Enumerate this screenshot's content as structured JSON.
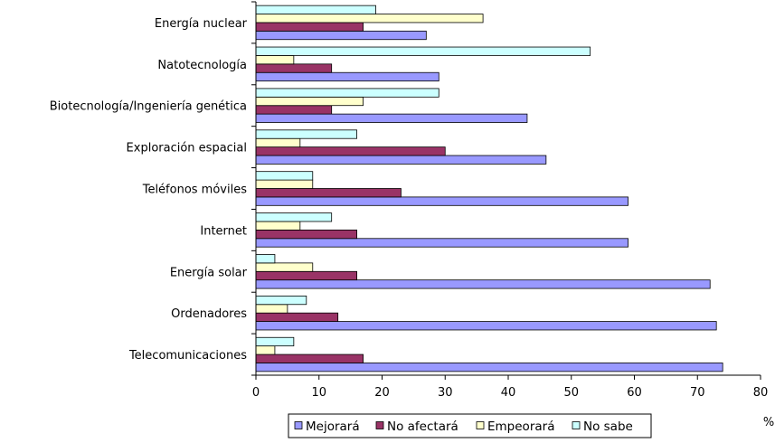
{
  "chart_data": {
    "type": "bar",
    "orientation": "horizontal",
    "categories": [
      "Energía nuclear",
      "Natotecnología",
      "Biotecnología/Ingeniería genética",
      "Exploración espacial",
      "Teléfonos móviles",
      "Internet",
      "Energía solar",
      "Ordenadores",
      "Telecomunicaciones"
    ],
    "series": [
      {
        "name": "Mejorará",
        "color": "#9999ff",
        "values": [
          27,
          29,
          43,
          46,
          59,
          59,
          72,
          73,
          74
        ]
      },
      {
        "name": "No afectará",
        "color": "#993366",
        "values": [
          17,
          12,
          12,
          30,
          23,
          16,
          16,
          13,
          17
        ]
      },
      {
        "name": "Empeorará",
        "color": "#ffffcc",
        "values": [
          36,
          6,
          17,
          7,
          9,
          7,
          9,
          5,
          3
        ]
      },
      {
        "name": "No sabe",
        "color": "#ccffff",
        "values": [
          19,
          53,
          29,
          16,
          9,
          12,
          3,
          8,
          6
        ]
      }
    ],
    "xlim": [
      0,
      80
    ],
    "xticks": [
      0,
      10,
      20,
      30,
      40,
      50,
      60,
      70,
      80
    ],
    "xlabel": "%",
    "title": "",
    "ylabel": "",
    "grid": false,
    "legend_placement": "bottom"
  }
}
